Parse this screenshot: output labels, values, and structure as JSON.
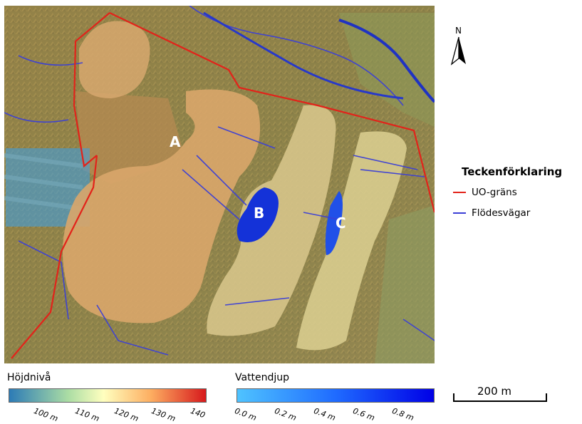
{
  "north_arrow": {
    "label": "N"
  },
  "map_labels": {
    "area_a": "A",
    "area_b": "B",
    "area_c": "C"
  },
  "legend": {
    "title": "Teckenförklaring",
    "items": [
      {
        "label": "UO-gräns",
        "color": "#e2231a"
      },
      {
        "label": "Flödesvägar",
        "color": "#3b3fd6"
      }
    ]
  },
  "elevation_ramp": {
    "title": "Höjdnivå",
    "colors": [
      "#2c7bb6",
      "#abdda4",
      "#ffffbf",
      "#fdae61",
      "#d7191c"
    ],
    "ticks": [
      "100 m",
      "110 m",
      "120 m",
      "130 m",
      "140"
    ]
  },
  "depth_ramp": {
    "title": "Vattendjup",
    "colors": [
      "#4fc3ff",
      "#1f6bff",
      "#0000e6"
    ],
    "ticks": [
      "0.0 m",
      "0.2 m",
      "0.4 m",
      "0.6 m",
      "0.8 m"
    ]
  },
  "scale_bar": {
    "label": "200 m"
  },
  "colors": {
    "terrain": "#9a8a4e",
    "pile_orange": "#d9a66a",
    "pile_yellow": "#d8c887",
    "water": "#3aa0ea",
    "deep_water": "#1432d8"
  }
}
